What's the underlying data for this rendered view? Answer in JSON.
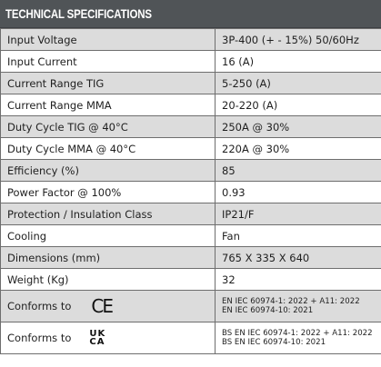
{
  "header": {
    "title": "TECHNICAL SPECIFICATIONS"
  },
  "rows": [
    {
      "label": "Input Voltage",
      "value": "3P-400 (+ - 15%) 50/60Hz"
    },
    {
      "label": "Input Current",
      "value": "16 (A)"
    },
    {
      "label": "Current Range TIG",
      "value": "5-250 (A)"
    },
    {
      "label": "Current Range MMA",
      "value": "20-220 (A)"
    },
    {
      "label": "Duty Cycle TIG @ 40°C",
      "value": "250A @ 30%"
    },
    {
      "label": "Duty Cycle MMA @ 40°C",
      "value": "220A @ 30%"
    },
    {
      "label": "Efficiency (%)",
      "value": "85"
    },
    {
      "label": "Power Factor @ 100%",
      "value": "0.93"
    },
    {
      "label": "Protection / Insulation Class",
      "value": "IP21/F"
    },
    {
      "label": "Cooling",
      "value": "Fan"
    },
    {
      "label": "Dimensions (mm)",
      "value": "765 X 335 X 640"
    },
    {
      "label": "Weight (Kg)",
      "value": "32"
    }
  ],
  "conformity": [
    {
      "label": "Conforms to",
      "mark": "CE",
      "mark_icon": "ce-mark-icon",
      "standards": [
        "EN IEC 60974-1: 2022 + A11: 2022",
        "EN IEC 60974-10: 2021"
      ]
    },
    {
      "label": "Conforms to",
      "mark": "UKCA",
      "mark_icon": "ukca-mark-icon",
      "standards": [
        "BS EN IEC 60974-1: 2022 + A11: 2022",
        "BS EN IEC 60974-10: 2021"
      ]
    }
  ],
  "colors": {
    "header_bg": "#505457",
    "shaded_row": "#dcdcdc",
    "plain_row": "#ffffff",
    "border": "#6e6e6e"
  }
}
